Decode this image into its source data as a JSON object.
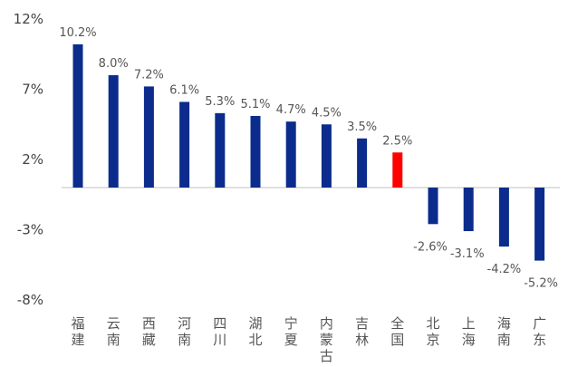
{
  "chart_data": {
    "type": "bar",
    "title": "",
    "xlabel": "",
    "ylabel": "",
    "ylim": [
      -8,
      12
    ],
    "yticks": [
      12,
      7,
      2,
      -3,
      -8
    ],
    "ytick_labels": [
      "12%",
      "7%",
      "2%",
      "-3%",
      "-8%"
    ],
    "grid": false,
    "legend": "none",
    "categories": [
      "福建",
      "云南",
      "西藏",
      "河南",
      "四川",
      "湖北",
      "宁夏",
      "内蒙古",
      "吉林",
      "全国",
      "北京",
      "上海",
      "海南",
      "广东"
    ],
    "values": [
      10.2,
      8.0,
      7.2,
      6.1,
      5.3,
      5.1,
      4.7,
      4.5,
      3.5,
      2.5,
      -2.6,
      -3.1,
      -4.2,
      -5.2
    ],
    "data_labels": [
      "10.2%",
      "8.0%",
      "7.2%",
      "6.1%",
      "5.3%",
      "5.1%",
      "4.7%",
      "4.5%",
      "3.5%",
      "2.5%",
      "-2.6%",
      "-3.1%",
      "-4.2%",
      "-5.2%"
    ],
    "colors": {
      "default": "#0b2c8c",
      "highlight": "#ff0000",
      "highlight_category": "全国",
      "axis": "#c0c0c0"
    }
  }
}
